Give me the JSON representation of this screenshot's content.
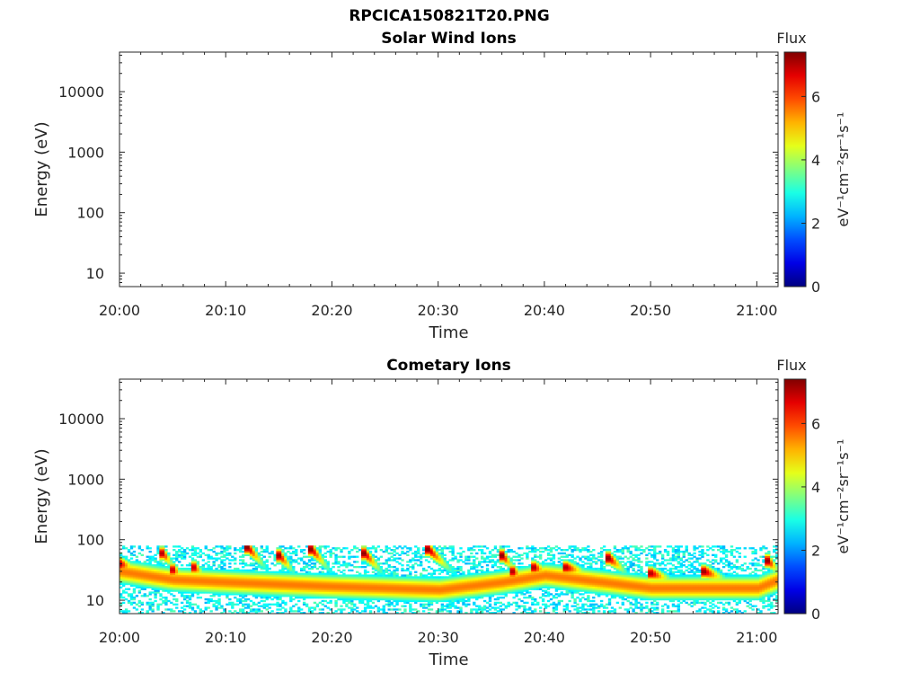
{
  "figure_title": "RPCICA150821T20.PNG",
  "chart_data": [
    {
      "type": "heatmap",
      "title": "Solar Wind Ions",
      "xlabel": "Time",
      "ylabel": "Energy (eV)",
      "x_ticks": [
        "20:00",
        "20:10",
        "20:20",
        "20:30",
        "20:40",
        "20:50",
        "21:00"
      ],
      "x_range": [
        "20:00",
        "21:02"
      ],
      "y_scale": "log",
      "y_ticks": [
        "10",
        "100",
        "1000",
        "10000"
      ],
      "y_range": [
        6,
        45000
      ],
      "colorbar": {
        "label": "Flux",
        "unit_label": "eV⁻¹cm⁻²sr⁻¹s⁻¹",
        "ticks": [
          "0",
          "2",
          "4",
          "6"
        ],
        "range": [
          0,
          7.4
        ],
        "colormap": "jet"
      },
      "data": []
    },
    {
      "type": "heatmap",
      "title": "Cometary Ions",
      "xlabel": "Time",
      "ylabel": "Energy (eV)",
      "x_ticks": [
        "20:00",
        "20:10",
        "20:20",
        "20:30",
        "20:40",
        "20:50",
        "21:00"
      ],
      "x_range": [
        "20:00",
        "21:02"
      ],
      "y_scale": "log",
      "y_ticks": [
        "10",
        "100",
        "1000",
        "10000"
      ],
      "y_range": [
        6,
        45000
      ],
      "colorbar": {
        "label": "Flux",
        "unit_label": "eV⁻¹cm⁻²sr⁻¹s⁻¹",
        "ticks": [
          "0",
          "2",
          "4",
          "6"
        ],
        "range": [
          0,
          7.4
        ],
        "colormap": "jet"
      },
      "data": {
        "noise_band_energy_eV": [
          6,
          80
        ],
        "baseline_peak_energy_eV": [
          {
            "time": "20:00",
            "energy": 30
          },
          {
            "time": "20:05",
            "energy": 22
          },
          {
            "time": "20:10",
            "energy": 20
          },
          {
            "time": "20:20",
            "energy": 17
          },
          {
            "time": "20:30",
            "energy": 15
          },
          {
            "time": "20:36",
            "energy": 20
          },
          {
            "time": "20:40",
            "energy": 26
          },
          {
            "time": "20:50",
            "energy": 16
          },
          {
            "time": "21:00",
            "energy": 16
          },
          {
            "time": "21:02",
            "energy": 22
          }
        ],
        "baseline_flux": 5.6,
        "bursts": [
          {
            "time": "20:00",
            "energy": 40,
            "flux": 7.0,
            "duration_min": 1.5
          },
          {
            "time": "20:04",
            "energy": 60,
            "flux": 7.0,
            "duration_min": 1.0
          },
          {
            "time": "20:05",
            "energy": 32,
            "flux": 6.8,
            "duration_min": 0.8
          },
          {
            "time": "20:07",
            "energy": 35,
            "flux": 6.8,
            "duration_min": 0.8
          },
          {
            "time": "20:12",
            "energy": 75,
            "flux": 7.3,
            "duration_min": 1.5
          },
          {
            "time": "20:15",
            "energy": 55,
            "flux": 7.2,
            "duration_min": 1.2
          },
          {
            "time": "20:18",
            "energy": 70,
            "flux": 7.3,
            "duration_min": 1.5
          },
          {
            "time": "20:23",
            "energy": 60,
            "flux": 7.3,
            "duration_min": 1.5
          },
          {
            "time": "20:29",
            "energy": 70,
            "flux": 7.3,
            "duration_min": 2.0
          },
          {
            "time": "20:36",
            "energy": 55,
            "flux": 7.3,
            "duration_min": 1.0
          },
          {
            "time": "20:37",
            "energy": 30,
            "flux": 7.0,
            "duration_min": 0.8
          },
          {
            "time": "20:39",
            "energy": 35,
            "flux": 7.0,
            "duration_min": 1.2
          },
          {
            "time": "20:42",
            "energy": 35,
            "flux": 7.0,
            "duration_min": 2.0
          },
          {
            "time": "20:46",
            "energy": 50,
            "flux": 7.3,
            "duration_min": 1.5
          },
          {
            "time": "20:50",
            "energy": 28,
            "flux": 7.0,
            "duration_min": 2.0
          },
          {
            "time": "20:55",
            "energy": 30,
            "flux": 7.2,
            "duration_min": 2.0
          },
          {
            "time": "21:01",
            "energy": 45,
            "flux": 7.2,
            "duration_min": 1.0
          }
        ]
      }
    }
  ]
}
